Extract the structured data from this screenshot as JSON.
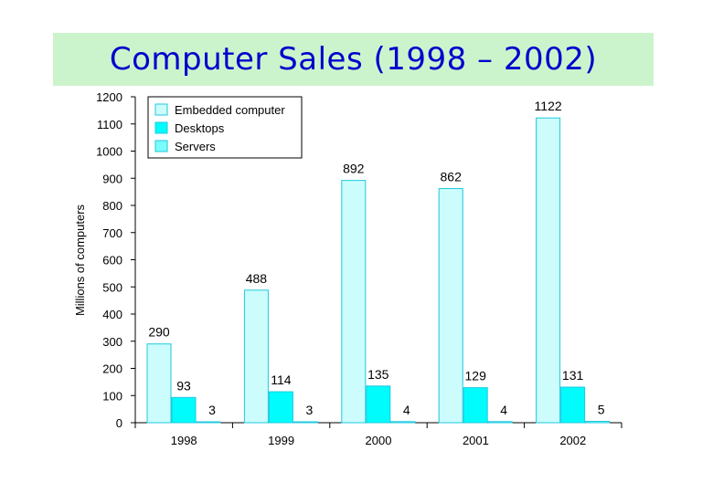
{
  "title": "Computer Sales (1998 – 2002)",
  "colors": {
    "title_bg": "#ccf4cc",
    "title_text": "#0000cc",
    "bar_stroke": "#1fc8e0"
  },
  "chart_data": {
    "type": "bar",
    "categories": [
      "1998",
      "1999",
      "2000",
      "2001",
      "2002"
    ],
    "series": [
      {
        "name": "Embedded computer",
        "values": [
          290,
          488,
          892,
          862,
          1122
        ],
        "color": "#ccfcfc"
      },
      {
        "name": "Desktops",
        "values": [
          93,
          114,
          135,
          129,
          131
        ],
        "color": "#00fcfc"
      },
      {
        "name": "Servers",
        "values": [
          3,
          3,
          4,
          4,
          5
        ],
        "color": "#7afcfc"
      }
    ],
    "data_labels": [
      [
        "290",
        "488",
        "892",
        "862",
        "1122"
      ],
      [
        "93",
        "114",
        "135",
        "129",
        "131"
      ],
      [
        "3",
        "3",
        "4",
        "4",
        "5"
      ]
    ],
    "ylabel": "Millions of computers",
    "xlabel": "",
    "ylim": [
      0,
      1200
    ],
    "yticks": [
      0,
      100,
      200,
      300,
      400,
      500,
      600,
      700,
      800,
      900,
      1000,
      1100,
      1200
    ],
    "grid": false,
    "legend_position": "top-left"
  }
}
